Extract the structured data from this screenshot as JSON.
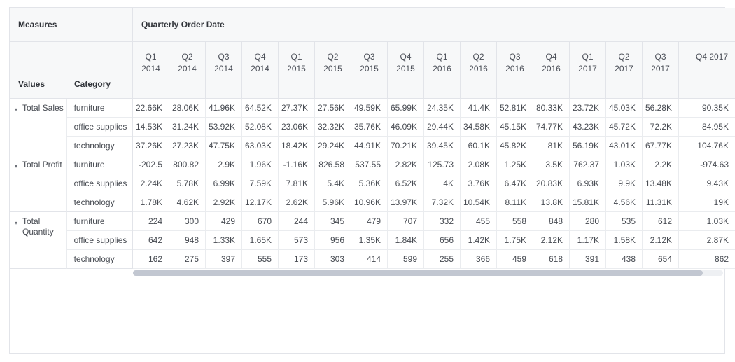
{
  "header": {
    "measures_label": "Measures",
    "quarterly_label": "Quarterly Order Date",
    "values_label": "Values",
    "category_label": "Category"
  },
  "icons": {
    "caret_down": "▾"
  },
  "colors": {
    "header_background": "#f7f8f9",
    "grid_border": "#e2e4e9",
    "scrollbar_thumb": "#c2c7d1"
  },
  "columns": [
    {
      "q": "Q1",
      "y": "2014"
    },
    {
      "q": "Q2",
      "y": "2014"
    },
    {
      "q": "Q3",
      "y": "2014"
    },
    {
      "q": "Q4",
      "y": "2014"
    },
    {
      "q": "Q1",
      "y": "2015"
    },
    {
      "q": "Q2",
      "y": "2015"
    },
    {
      "q": "Q3",
      "y": "2015"
    },
    {
      "q": "Q4",
      "y": "2015"
    },
    {
      "q": "Q1",
      "y": "2016"
    },
    {
      "q": "Q2",
      "y": "2016"
    },
    {
      "q": "Q3",
      "y": "2016"
    },
    {
      "q": "Q4",
      "y": "2016"
    },
    {
      "q": "Q1",
      "y": "2017"
    },
    {
      "q": "Q2",
      "y": "2017"
    },
    {
      "q": "Q3",
      "y": "2017"
    },
    {
      "q": "Q4 2017",
      "y": ""
    }
  ],
  "groups": [
    {
      "measure": "Total Sales",
      "rows": [
        {
          "category": "furniture",
          "values": [
            "22.66K",
            "28.06K",
            "41.96K",
            "64.52K",
            "27.37K",
            "27.56K",
            "49.59K",
            "65.99K",
            "24.35K",
            "41.4K",
            "52.81K",
            "80.33K",
            "23.72K",
            "45.03K",
            "56.28K",
            "90.35K"
          ]
        },
        {
          "category": "office supplies",
          "values": [
            "14.53K",
            "31.24K",
            "53.92K",
            "52.08K",
            "23.06K",
            "32.32K",
            "35.76K",
            "46.09K",
            "29.44K",
            "34.58K",
            "45.15K",
            "74.77K",
            "43.23K",
            "45.72K",
            "72.2K",
            "84.95K"
          ]
        },
        {
          "category": "technology",
          "values": [
            "37.26K",
            "27.23K",
            "47.75K",
            "63.03K",
            "18.42K",
            "29.24K",
            "44.91K",
            "70.21K",
            "39.45K",
            "60.1K",
            "45.82K",
            "81K",
            "56.19K",
            "43.01K",
            "67.77K",
            "104.76K"
          ]
        }
      ]
    },
    {
      "measure": "Total Profit",
      "rows": [
        {
          "category": "furniture",
          "values": [
            "-202.5",
            "800.82",
            "2.9K",
            "1.96K",
            "-1.16K",
            "826.58",
            "537.55",
            "2.82K",
            "125.73",
            "2.08K",
            "1.25K",
            "3.5K",
            "762.37",
            "1.03K",
            "2.2K",
            "-974.63"
          ]
        },
        {
          "category": "office supplies",
          "values": [
            "2.24K",
            "5.78K",
            "6.99K",
            "7.59K",
            "7.81K",
            "5.4K",
            "5.36K",
            "6.52K",
            "4K",
            "3.76K",
            "6.47K",
            "20.83K",
            "6.93K",
            "9.9K",
            "13.48K",
            "9.43K"
          ]
        },
        {
          "category": "technology",
          "values": [
            "1.78K",
            "4.62K",
            "2.92K",
            "12.17K",
            "2.62K",
            "5.96K",
            "10.96K",
            "13.97K",
            "7.32K",
            "10.54K",
            "8.11K",
            "13.8K",
            "15.81K",
            "4.56K",
            "11.31K",
            "19K"
          ]
        }
      ]
    },
    {
      "measure": "Total Quantity",
      "rows": [
        {
          "category": "furniture",
          "values": [
            "224",
            "300",
            "429",
            "670",
            "244",
            "345",
            "479",
            "707",
            "332",
            "455",
            "558",
            "848",
            "280",
            "535",
            "612",
            "1.03K"
          ]
        },
        {
          "category": "office supplies",
          "values": [
            "642",
            "948",
            "1.33K",
            "1.65K",
            "573",
            "956",
            "1.35K",
            "1.84K",
            "656",
            "1.42K",
            "1.75K",
            "2.12K",
            "1.17K",
            "1.58K",
            "2.12K",
            "2.87K"
          ]
        },
        {
          "category": "technology",
          "values": [
            "162",
            "275",
            "397",
            "555",
            "173",
            "303",
            "414",
            "599",
            "255",
            "366",
            "459",
            "618",
            "391",
            "438",
            "654",
            "862"
          ]
        }
      ]
    }
  ]
}
